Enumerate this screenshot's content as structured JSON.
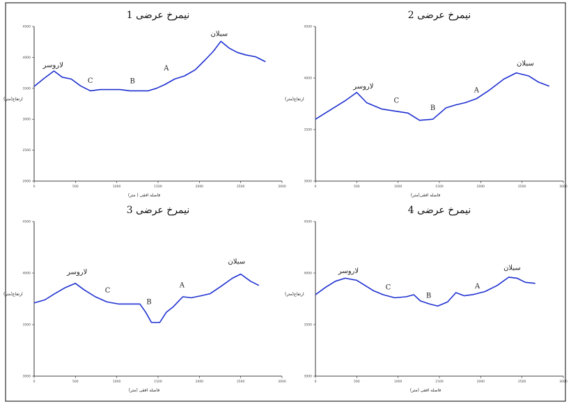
{
  "chart_data": [
    {
      "type": "line",
      "title": "نیمرخ عرضی 1",
      "xlabel": "فاصله افقی ( متر)",
      "ylabel": "ارتفاع(متر)",
      "x_ticks": [
        0,
        500,
        1000,
        1500,
        2000,
        2500,
        3000
      ],
      "y_ticks": [
        4500,
        4000,
        3500,
        3000,
        2500,
        2000
      ],
      "xlim": [
        0,
        3000
      ],
      "ylim": [
        2000,
        4500
      ],
      "x": [
        0,
        120,
        240,
        340,
        450,
        560,
        680,
        800,
        920,
        1040,
        1160,
        1270,
        1380,
        1480,
        1580,
        1700,
        1820,
        1950,
        2070,
        2170,
        2260,
        2360,
        2460,
        2560,
        2680,
        2800
      ],
      "y": [
        3530,
        3660,
        3780,
        3680,
        3650,
        3540,
        3460,
        3480,
        3480,
        3480,
        3460,
        3460,
        3460,
        3500,
        3560,
        3650,
        3700,
        3800,
        3960,
        4100,
        4260,
        4150,
        4080,
        4040,
        4010,
        3930
      ],
      "annotations": [
        {
          "text": "لاروسر",
          "x": 230,
          "y": 3840
        },
        {
          "text": "C",
          "x": 680,
          "y": 3590
        },
        {
          "text": "B",
          "x": 1190,
          "y": 3580
        },
        {
          "text": "A",
          "x": 1600,
          "y": 3790
        },
        {
          "text": "سبلان",
          "x": 2240,
          "y": 4350
        }
      ]
    },
    {
      "type": "line",
      "title": "نیمرخ عرضی 2",
      "xlabel": "فاصله افقی(متر)",
      "ylabel": "ارتفاع(متر)",
      "x_ticks": [
        0,
        500,
        1000,
        1500,
        2000,
        2500,
        3000
      ],
      "y_ticks": [
        4500,
        4000,
        3500,
        3000
      ],
      "xlim": [
        0,
        3000
      ],
      "ylim": [
        3000,
        4500
      ],
      "x": [
        0,
        120,
        240,
        360,
        500,
        620,
        800,
        960,
        1120,
        1260,
        1420,
        1580,
        1700,
        1810,
        1950,
        2100,
        2280,
        2430,
        2580,
        2700,
        2830
      ],
      "y": [
        3600,
        3660,
        3720,
        3780,
        3860,
        3760,
        3700,
        3680,
        3660,
        3590,
        3600,
        3710,
        3740,
        3760,
        3800,
        3880,
        3990,
        4050,
        4020,
        3960,
        3920
      ],
      "annotations": [
        {
          "text": "لاروسر",
          "x": 580,
          "y": 3900
        },
        {
          "text": "C",
          "x": 980,
          "y": 3760
        },
        {
          "text": "B",
          "x": 1420,
          "y": 3690
        },
        {
          "text": "A",
          "x": 1950,
          "y": 3860
        },
        {
          "text": "سبلان",
          "x": 2540,
          "y": 4120
        }
      ]
    },
    {
      "type": "line",
      "title": "نیمرخ عرضی 3",
      "xlabel": "فاصله افقی (متر)",
      "ylabel": "ارتفاع(متر)",
      "x_ticks": [
        0,
        500,
        1000,
        1500,
        2000,
        2500,
        3000
      ],
      "y_ticks": [
        4500,
        4000,
        3500,
        3000
      ],
      "xlim": [
        0,
        3000
      ],
      "ylim": [
        3000,
        4500
      ],
      "x": [
        0,
        130,
        250,
        380,
        500,
        600,
        740,
        880,
        1020,
        1130,
        1280,
        1350,
        1420,
        1520,
        1600,
        1680,
        1800,
        1900,
        2020,
        2130,
        2260,
        2400,
        2500,
        2620,
        2720
      ],
      "y": [
        3710,
        3740,
        3800,
        3860,
        3900,
        3840,
        3770,
        3720,
        3700,
        3700,
        3700,
        3620,
        3520,
        3520,
        3620,
        3670,
        3770,
        3760,
        3780,
        3800,
        3870,
        3950,
        3990,
        3920,
        3880
      ],
      "annotations": [
        {
          "text": "لاروسر",
          "x": 520,
          "y": 3990
        },
        {
          "text": "C",
          "x": 890,
          "y": 3810
        },
        {
          "text": "B",
          "x": 1390,
          "y": 3700
        },
        {
          "text": "A",
          "x": 1790,
          "y": 3860
        },
        {
          "text": "سبلان",
          "x": 2450,
          "y": 4090
        }
      ]
    },
    {
      "type": "line",
      "title": "نیمرخ عرضی 4",
      "xlabel": "فاصله افقی (متر)",
      "ylabel": "ارتفاع(متر)",
      "x_ticks": [
        0,
        500,
        1000,
        1500,
        2000,
        2500,
        3000
      ],
      "y_ticks": [
        4500,
        4000,
        3500,
        3000
      ],
      "xlim": [
        0,
        3000
      ],
      "ylim": [
        3000,
        4500
      ],
      "x": [
        0,
        120,
        240,
        360,
        500,
        600,
        700,
        820,
        960,
        1100,
        1190,
        1270,
        1380,
        1480,
        1600,
        1700,
        1800,
        1900,
        2050,
        2200,
        2340,
        2440,
        2540,
        2660
      ],
      "y": [
        3790,
        3860,
        3920,
        3950,
        3930,
        3880,
        3830,
        3790,
        3760,
        3770,
        3790,
        3730,
        3700,
        3680,
        3720,
        3810,
        3780,
        3790,
        3820,
        3880,
        3960,
        3950,
        3910,
        3900
      ],
      "annotations": [
        {
          "text": "لاروسر",
          "x": 400,
          "y": 4000
        },
        {
          "text": "C",
          "x": 880,
          "y": 3840
        },
        {
          "text": "B",
          "x": 1370,
          "y": 3760
        },
        {
          "text": "A",
          "x": 1960,
          "y": 3850
        },
        {
          "text": "سبلان",
          "x": 2380,
          "y": 4030
        }
      ]
    }
  ]
}
